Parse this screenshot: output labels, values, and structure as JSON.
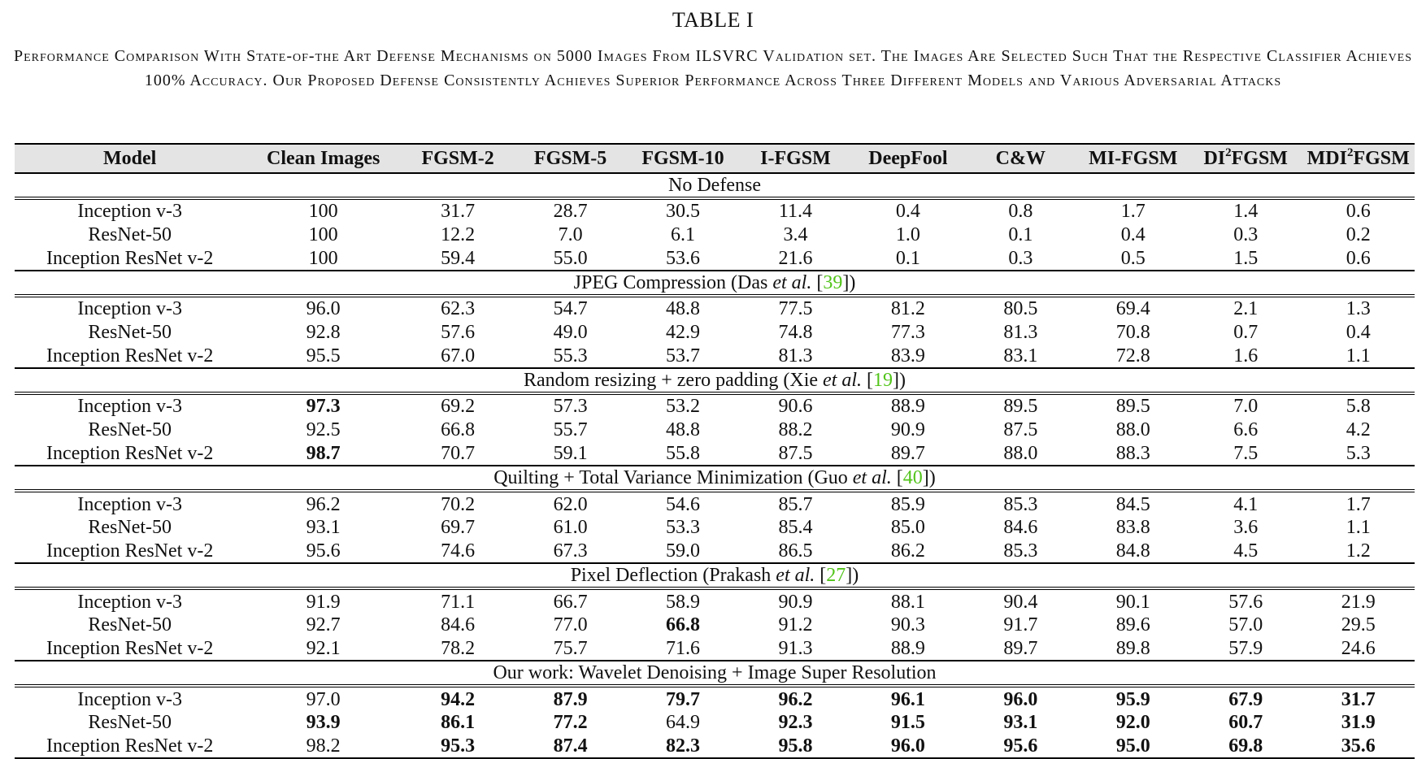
{
  "table_label": "TABLE I",
  "caption": "Performance Comparison With State-of-the Art Defense Mechanisms on 5000 Images From ILSVRC Validation set. The Images Are Selected Such That the Respective Classifier Achieves 100% Accuracy. Our Proposed Defense Consistently Achieves Superior Performance Across Three Different Models and Various Adversarial Attacks",
  "headers": [
    "Model",
    "Clean Images",
    "FGSM-2",
    "FGSM-5",
    "FGSM-10",
    "I-FGSM",
    "DeepFool",
    "C&W",
    "MI-FGSM",
    "DI²FGSM",
    "MDI²FGSM"
  ],
  "sections": [
    {
      "title_pre": "No Defense",
      "title_etal": "",
      "title_cite": "",
      "title_post": "",
      "rows": [
        {
          "model": "Inception v-3",
          "values": [
            "100",
            "31.7",
            "28.7",
            "30.5",
            "11.4",
            "0.4",
            "0.8",
            "1.7",
            "1.4",
            "0.6"
          ],
          "bold": []
        },
        {
          "model": "ResNet-50",
          "values": [
            "100",
            "12.2",
            "7.0",
            "6.1",
            "3.4",
            "1.0",
            "0.1",
            "0.4",
            "0.3",
            "0.2"
          ],
          "bold": []
        },
        {
          "model": "Inception ResNet v-2",
          "values": [
            "100",
            "59.4",
            "55.0",
            "53.6",
            "21.6",
            "0.1",
            "0.3",
            "0.5",
            "1.5",
            "0.6"
          ],
          "bold": []
        }
      ]
    },
    {
      "title_pre": "JPEG Compression (Das ",
      "title_etal": "et al.",
      "title_cite": "39",
      "title_post": ")",
      "rows": [
        {
          "model": "Inception v-3",
          "values": [
            "96.0",
            "62.3",
            "54.7",
            "48.8",
            "77.5",
            "81.2",
            "80.5",
            "69.4",
            "2.1",
            "1.3"
          ],
          "bold": []
        },
        {
          "model": "ResNet-50",
          "values": [
            "92.8",
            "57.6",
            "49.0",
            "42.9",
            "74.8",
            "77.3",
            "81.3",
            "70.8",
            "0.7",
            "0.4"
          ],
          "bold": []
        },
        {
          "model": "Inception ResNet v-2",
          "values": [
            "95.5",
            "67.0",
            "55.3",
            "53.7",
            "81.3",
            "83.9",
            "83.1",
            "72.8",
            "1.6",
            "1.1"
          ],
          "bold": []
        }
      ]
    },
    {
      "title_pre": "Random resizing + zero padding (Xie ",
      "title_etal": "et al.",
      "title_cite": "19",
      "title_post": ")",
      "rows": [
        {
          "model": "Inception v-3",
          "values": [
            "97.3",
            "69.2",
            "57.3",
            "53.2",
            "90.6",
            "88.9",
            "89.5",
            "89.5",
            "7.0",
            "5.8"
          ],
          "bold": [
            0
          ]
        },
        {
          "model": "ResNet-50",
          "values": [
            "92.5",
            "66.8",
            "55.7",
            "48.8",
            "88.2",
            "90.9",
            "87.5",
            "88.0",
            "6.6",
            "4.2"
          ],
          "bold": []
        },
        {
          "model": "Inception ResNet v-2",
          "values": [
            "98.7",
            "70.7",
            "59.1",
            "55.8",
            "87.5",
            "89.7",
            "88.0",
            "88.3",
            "7.5",
            "5.3"
          ],
          "bold": [
            0
          ]
        }
      ]
    },
    {
      "title_pre": "Quilting + Total Variance Minimization (Guo ",
      "title_etal": "et al.",
      "title_cite": "40",
      "title_post": ")",
      "rows": [
        {
          "model": "Inception v-3",
          "values": [
            "96.2",
            "70.2",
            "62.0",
            "54.6",
            "85.7",
            "85.9",
            "85.3",
            "84.5",
            "4.1",
            "1.7"
          ],
          "bold": []
        },
        {
          "model": "ResNet-50",
          "values": [
            "93.1",
            "69.7",
            "61.0",
            "53.3",
            "85.4",
            "85.0",
            "84.6",
            "83.8",
            "3.6",
            "1.1"
          ],
          "bold": []
        },
        {
          "model": "Inception ResNet v-2",
          "values": [
            "95.6",
            "74.6",
            "67.3",
            "59.0",
            "86.5",
            "86.2",
            "85.3",
            "84.8",
            "4.5",
            "1.2"
          ],
          "bold": []
        }
      ]
    },
    {
      "title_pre": "Pixel Deflection (Prakash ",
      "title_etal": "et al.",
      "title_cite": "27",
      "title_post": ")",
      "rows": [
        {
          "model": "Inception v-3",
          "values": [
            "91.9",
            "71.1",
            "66.7",
            "58.9",
            "90.9",
            "88.1",
            "90.4",
            "90.1",
            "57.6",
            "21.9"
          ],
          "bold": []
        },
        {
          "model": "ResNet-50",
          "values": [
            "92.7",
            "84.6",
            "77.0",
            "66.8",
            "91.2",
            "90.3",
            "91.7",
            "89.6",
            "57.0",
            "29.5"
          ],
          "bold": [
            3
          ]
        },
        {
          "model": "Inception ResNet v-2",
          "values": [
            "92.1",
            "78.2",
            "75.7",
            "71.6",
            "91.3",
            "88.9",
            "89.7",
            "89.8",
            "57.9",
            "24.6"
          ],
          "bold": []
        }
      ]
    },
    {
      "title_pre": "Our work: Wavelet Denoising + Image Super Resolution",
      "title_etal": "",
      "title_cite": "",
      "title_post": "",
      "rows": [
        {
          "model": "Inception v-3",
          "values": [
            "97.0",
            "94.2",
            "87.9",
            "79.7",
            "96.2",
            "96.1",
            "96.0",
            "95.9",
            "67.9",
            "31.7"
          ],
          "bold": [
            1,
            2,
            3,
            4,
            5,
            6,
            7,
            8,
            9
          ]
        },
        {
          "model": "ResNet-50",
          "values": [
            "93.9",
            "86.1",
            "77.2",
            "64.9",
            "92.3",
            "91.5",
            "93.1",
            "92.0",
            "60.7",
            "31.9"
          ],
          "bold": [
            0,
            1,
            2,
            4,
            5,
            6,
            7,
            8,
            9
          ]
        },
        {
          "model": "Inception ResNet v-2",
          "values": [
            "98.2",
            "95.3",
            "87.4",
            "82.3",
            "95.8",
            "96.0",
            "95.6",
            "95.0",
            "69.8",
            "35.6"
          ],
          "bold": [
            1,
            2,
            3,
            4,
            5,
            6,
            7,
            8,
            9
          ]
        }
      ]
    }
  ]
}
